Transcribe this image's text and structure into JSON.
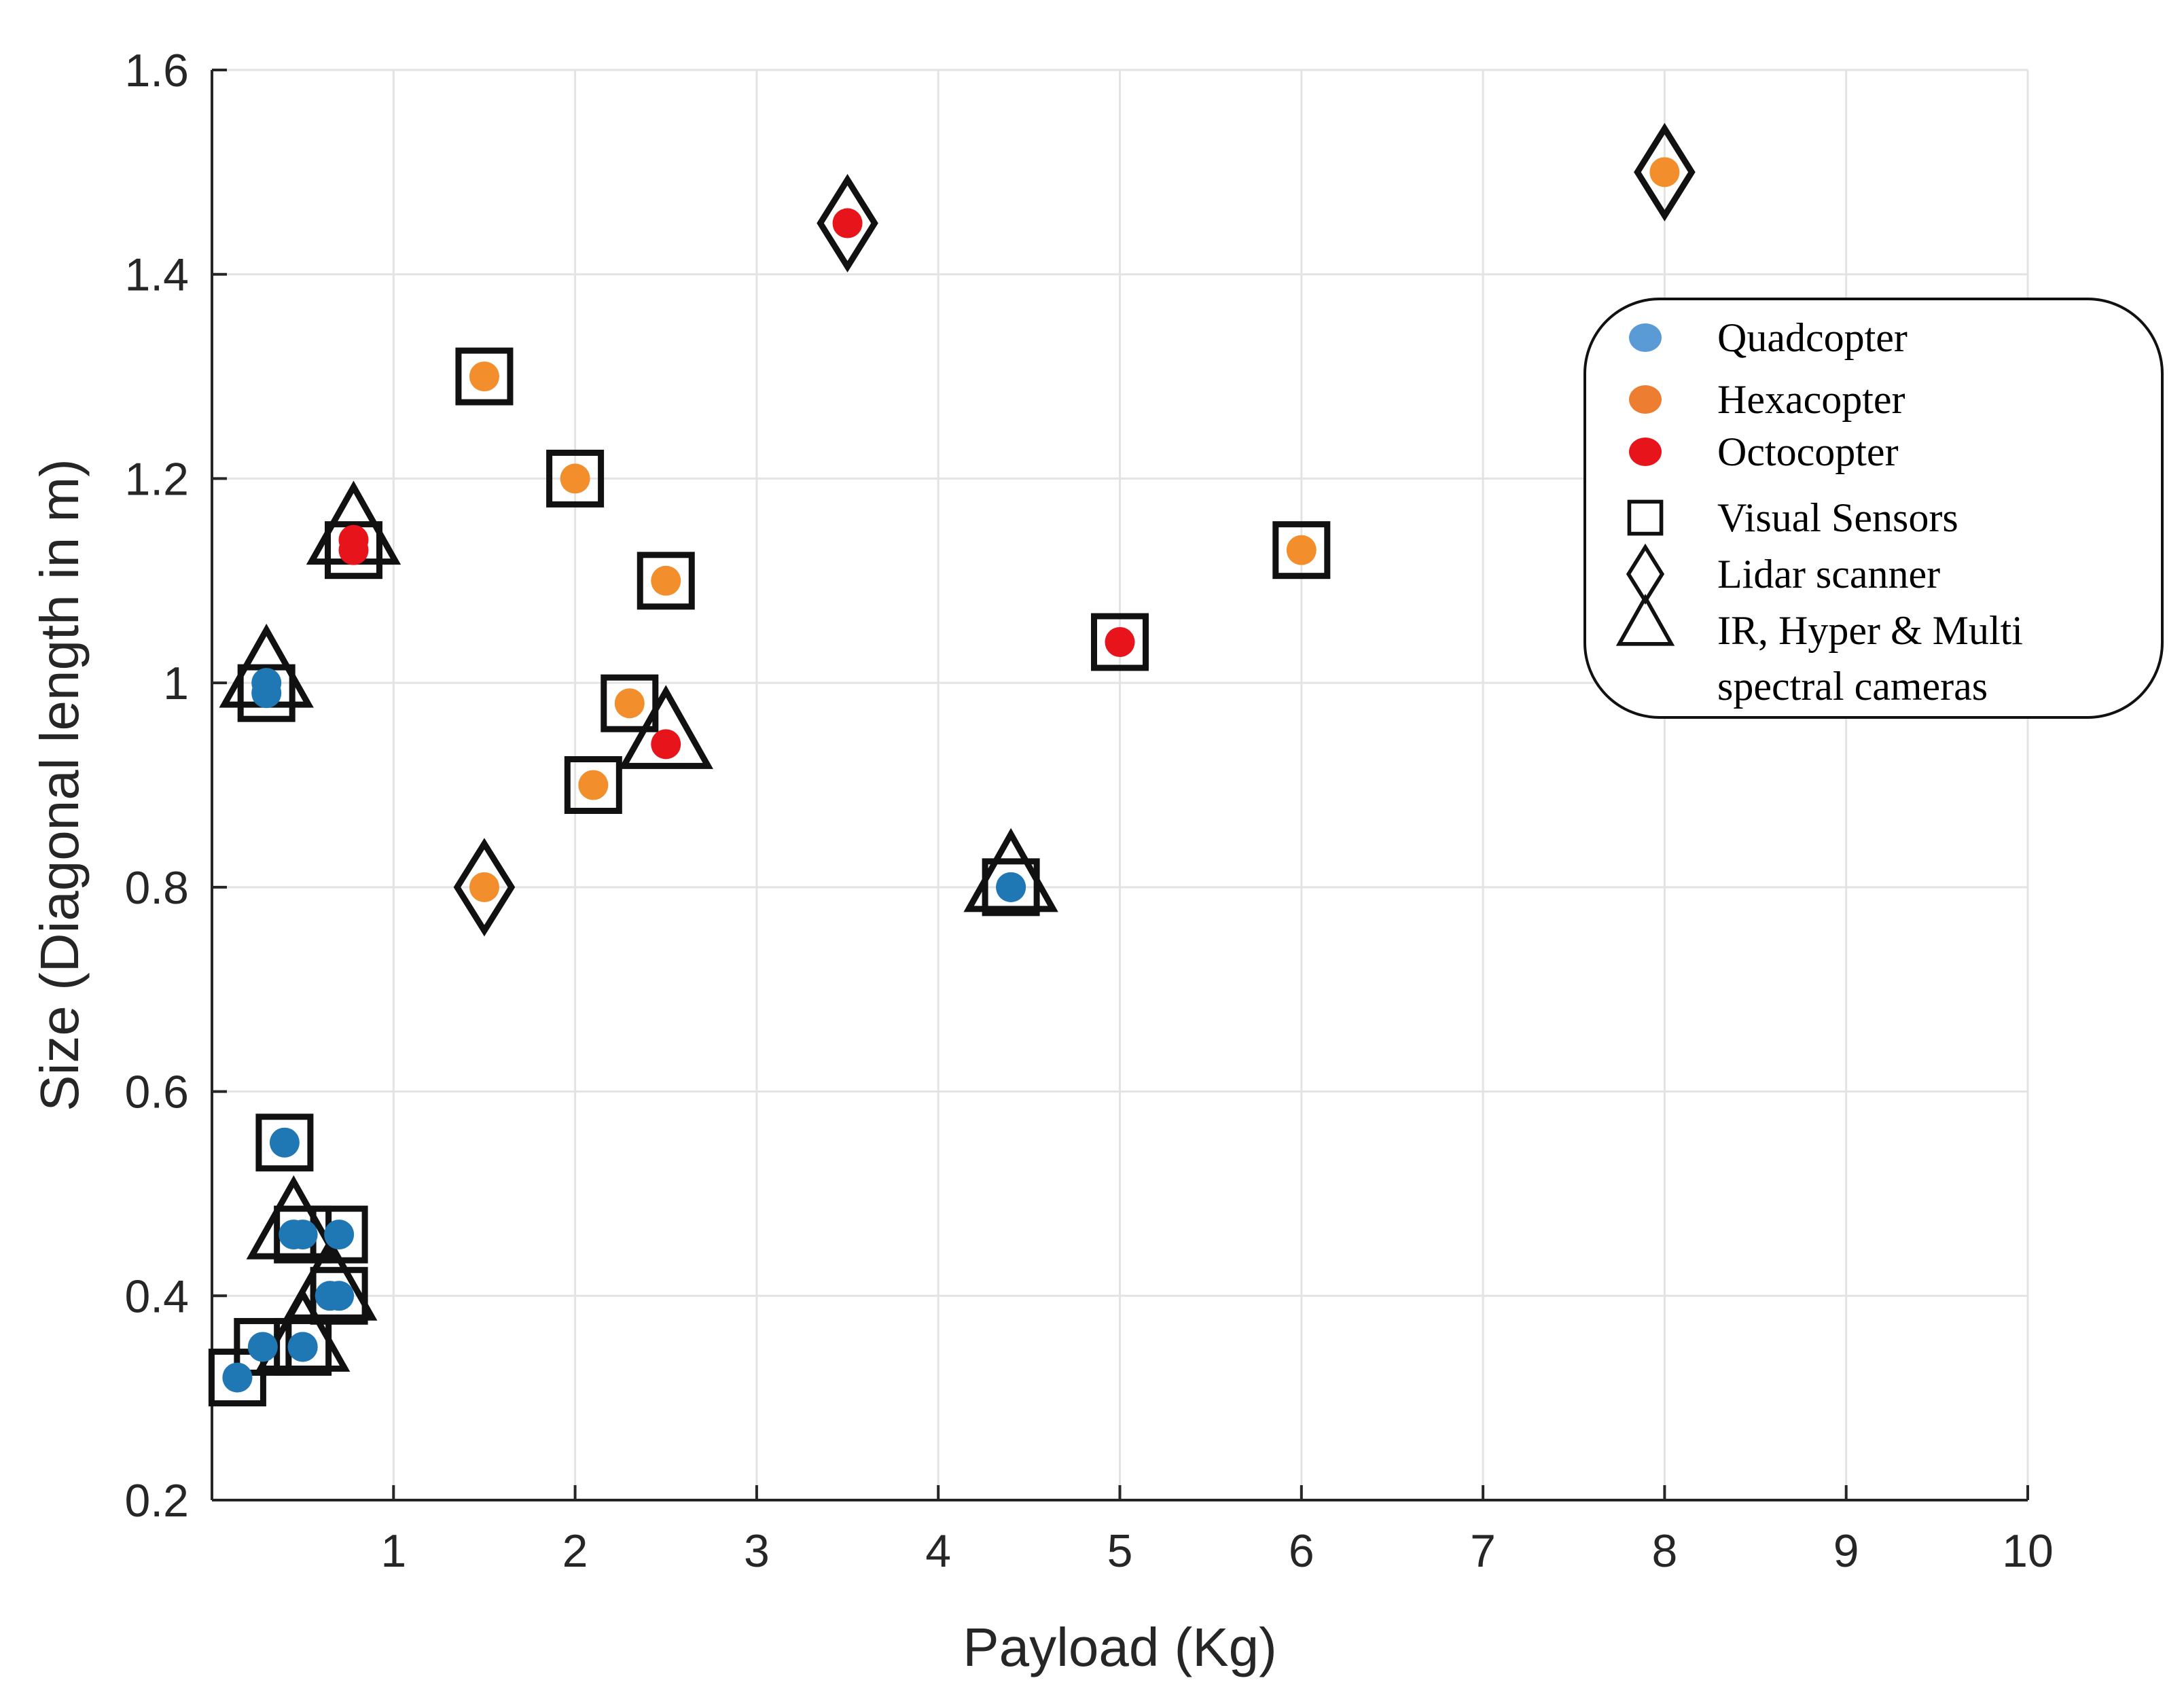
{
  "chart_data": {
    "type": "scatter",
    "xlabel": "Payload (Kg)",
    "ylabel": "Size (Diagonal length in m)",
    "xlim": [
      0,
      10
    ],
    "ylim": [
      0.2,
      1.6
    ],
    "grid": true,
    "x_ticks": [
      {
        "value": 1,
        "label": "1"
      },
      {
        "value": 2,
        "label": "2"
      },
      {
        "value": 3,
        "label": "3"
      },
      {
        "value": 4,
        "label": "4"
      },
      {
        "value": 5,
        "label": "5"
      },
      {
        "value": 6,
        "label": "6"
      },
      {
        "value": 7,
        "label": "7"
      },
      {
        "value": 8,
        "label": "8"
      },
      {
        "value": 9,
        "label": "9"
      },
      {
        "value": 10,
        "label": "10"
      }
    ],
    "y_ticks": [
      {
        "value": 0.2,
        "label": "0.2"
      },
      {
        "value": 0.4,
        "label": "0.4"
      },
      {
        "value": 0.6,
        "label": "0.6"
      },
      {
        "value": 0.8,
        "label": "0.8"
      },
      {
        "value": 1.0,
        "label": "1"
      },
      {
        "value": 1.2,
        "label": "1.2"
      },
      {
        "value": 1.4,
        "label": "1.4"
      },
      {
        "value": 1.6,
        "label": "1.6"
      }
    ],
    "legend_position": "right",
    "types": [
      {
        "name": "Quadcopter",
        "color": "#1f77b4",
        "legend_color": "#5b9bd5"
      },
      {
        "name": "Hexacopter",
        "color": "#f28e2b",
        "legend_color": "#ed7d31"
      },
      {
        "name": "Octocopter",
        "color": "#e8141b",
        "legend_color": "#e8141b"
      }
    ],
    "sensors": [
      {
        "name": "Visual Sensors",
        "marker": "square"
      },
      {
        "name": "Lidar scanner",
        "marker": "diamond"
      },
      {
        "name": "IR, Hyper & Multi spectral cameras",
        "marker": "triangle",
        "lines": [
          "IR, Hyper & Multi",
          "spectral cameras"
        ]
      }
    ],
    "points": [
      {
        "x": 0.3,
        "y": 0.99,
        "type": "Quadcopter",
        "sensor": "Visual Sensors"
      },
      {
        "x": 0.3,
        "y": 1.0,
        "type": "Quadcopter",
        "sensor": "IR, Hyper & Multi spectral cameras"
      },
      {
        "x": 0.4,
        "y": 0.55,
        "type": "Quadcopter",
        "sensor": "Visual Sensors"
      },
      {
        "x": 0.45,
        "y": 0.46,
        "type": "Quadcopter",
        "sensor": "IR, Hyper & Multi spectral cameras"
      },
      {
        "x": 0.5,
        "y": 0.46,
        "type": "Quadcopter",
        "sensor": "Visual Sensors"
      },
      {
        "x": 0.7,
        "y": 0.46,
        "type": "Quadcopter",
        "sensor": "Visual Sensors"
      },
      {
        "x": 0.7,
        "y": 0.4,
        "type": "Quadcopter",
        "sensor": "Visual Sensors"
      },
      {
        "x": 0.65,
        "y": 0.4,
        "type": "Quadcopter",
        "sensor": "IR, Hyper & Multi spectral cameras"
      },
      {
        "x": 0.28,
        "y": 0.35,
        "type": "Quadcopter",
        "sensor": "Visual Sensors"
      },
      {
        "x": 0.5,
        "y": 0.35,
        "type": "Quadcopter",
        "sensor": "Visual Sensors"
      },
      {
        "x": 0.5,
        "y": 0.35,
        "type": "Quadcopter",
        "sensor": "IR, Hyper & Multi spectral cameras"
      },
      {
        "x": 0.14,
        "y": 0.32,
        "type": "Quadcopter",
        "sensor": "Visual Sensors"
      },
      {
        "x": 4.4,
        "y": 0.8,
        "type": "Quadcopter",
        "sensor": "Visual Sensors"
      },
      {
        "x": 4.4,
        "y": 0.8,
        "type": "Quadcopter",
        "sensor": "IR, Hyper & Multi spectral cameras"
      },
      {
        "x": 1.5,
        "y": 1.3,
        "type": "Hexacopter",
        "sensor": "Visual Sensors"
      },
      {
        "x": 2.0,
        "y": 1.2,
        "type": "Hexacopter",
        "sensor": "Visual Sensors"
      },
      {
        "x": 2.5,
        "y": 1.1,
        "type": "Hexacopter",
        "sensor": "Visual Sensors"
      },
      {
        "x": 2.3,
        "y": 0.98,
        "type": "Hexacopter",
        "sensor": "Visual Sensors"
      },
      {
        "x": 2.1,
        "y": 0.9,
        "type": "Hexacopter",
        "sensor": "Visual Sensors"
      },
      {
        "x": 1.5,
        "y": 0.8,
        "type": "Hexacopter",
        "sensor": "Lidar scanner"
      },
      {
        "x": 6.0,
        "y": 1.13,
        "type": "Hexacopter",
        "sensor": "Visual Sensors"
      },
      {
        "x": 8.0,
        "y": 1.5,
        "type": "Hexacopter",
        "sensor": "Lidar scanner"
      },
      {
        "x": 0.78,
        "y": 1.13,
        "type": "Octocopter",
        "sensor": "Visual Sensors"
      },
      {
        "x": 0.78,
        "y": 1.14,
        "type": "Octocopter",
        "sensor": "IR, Hyper & Multi spectral cameras"
      },
      {
        "x": 2.5,
        "y": 0.94,
        "type": "Octocopter",
        "sensor": "IR, Hyper & Multi spectral cameras"
      },
      {
        "x": 3.5,
        "y": 1.45,
        "type": "Octocopter",
        "sensor": "Lidar scanner"
      },
      {
        "x": 5.0,
        "y": 1.04,
        "type": "Octocopter",
        "sensor": "Visual Sensors"
      }
    ]
  }
}
